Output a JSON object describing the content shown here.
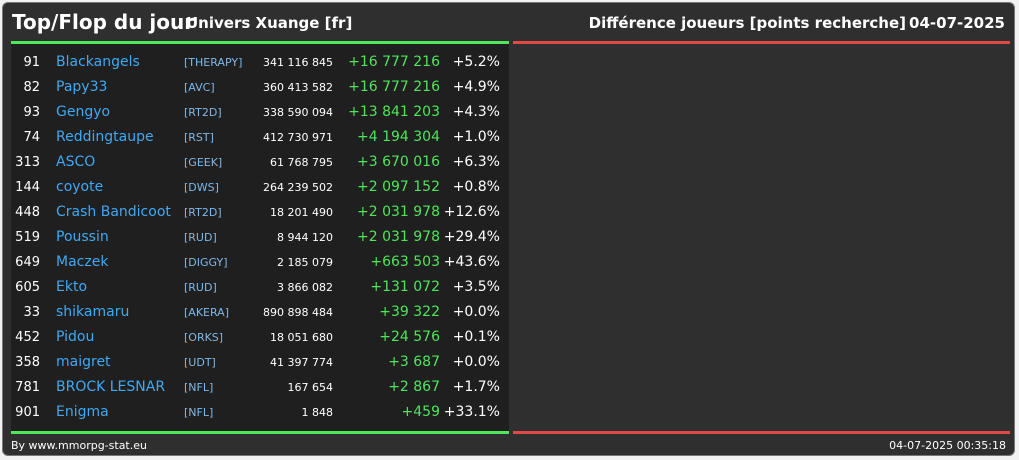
{
  "header": {
    "title": "Top/Flop du jour",
    "subtitle": "Univers Xuange [fr]",
    "right_title": "Différence joueurs [points recherche]",
    "date": "04-07-2025"
  },
  "rows": [
    {
      "rank": "91",
      "name": "Blackangels",
      "tag": "[THERAPY]",
      "points": "341 116 845",
      "diff": "+16 777 216",
      "pct": "+5.2%"
    },
    {
      "rank": "82",
      "name": "Papy33",
      "tag": "[AVC]",
      "points": "360 413 582",
      "diff": "+16 777 216",
      "pct": "+4.9%"
    },
    {
      "rank": "93",
      "name": "Gengyo",
      "tag": "[RT2D]",
      "points": "338 590 094",
      "diff": "+13 841 203",
      "pct": "+4.3%"
    },
    {
      "rank": "74",
      "name": "Reddingtaupe",
      "tag": "[RST]",
      "points": "412 730 971",
      "diff": "+4 194 304",
      "pct": "+1.0%"
    },
    {
      "rank": "313",
      "name": "ASCO",
      "tag": "[GEEK]",
      "points": "61 768 795",
      "diff": "+3 670 016",
      "pct": "+6.3%"
    },
    {
      "rank": "144",
      "name": "coyote",
      "tag": "[DWS]",
      "points": "264 239 502",
      "diff": "+2 097 152",
      "pct": "+0.8%"
    },
    {
      "rank": "448",
      "name": "Crash Bandicoot",
      "tag": "[RT2D]",
      "points": "18 201 490",
      "diff": "+2 031 978",
      "pct": "+12.6%"
    },
    {
      "rank": "519",
      "name": "Poussin",
      "tag": "[RUD]",
      "points": "8 944 120",
      "diff": "+2 031 978",
      "pct": "+29.4%"
    },
    {
      "rank": "649",
      "name": "Maczek",
      "tag": "[DIGGY]",
      "points": "2 185 079",
      "diff": "+663 503",
      "pct": "+43.6%"
    },
    {
      "rank": "605",
      "name": "Ekto",
      "tag": "[RUD]",
      "points": "3 866 082",
      "diff": "+131 072",
      "pct": "+3.5%"
    },
    {
      "rank": "33",
      "name": "shikamaru",
      "tag": "[AKERA]",
      "points": "890 898 484",
      "diff": "+39 322",
      "pct": "+0.0%"
    },
    {
      "rank": "452",
      "name": "Pidou",
      "tag": "[ORKS]",
      "points": "18 051 680",
      "diff": "+24 576",
      "pct": "+0.1%"
    },
    {
      "rank": "358",
      "name": "maigret",
      "tag": "[UDT]",
      "points": "41 397 774",
      "diff": "+3 687",
      "pct": "+0.0%"
    },
    {
      "rank": "781",
      "name": "BROCK LESNAR",
      "tag": "[NFL]",
      "points": "167 654",
      "diff": "+2 867",
      "pct": "+1.7%"
    },
    {
      "rank": "901",
      "name": "Enigma",
      "tag": "[NFL]",
      "points": "1 848",
      "diff": "+459",
      "pct": "+33.1%"
    }
  ],
  "footer": {
    "credit": "By www.mmorpg-stat.eu",
    "timestamp": "04-07-2025 00:35:18"
  },
  "colors": {
    "top_accent": "#4ee65a",
    "flop_accent": "#e04a45",
    "player_name": "#3fa9f5",
    "alliance_tag": "#7fb8e8"
  }
}
